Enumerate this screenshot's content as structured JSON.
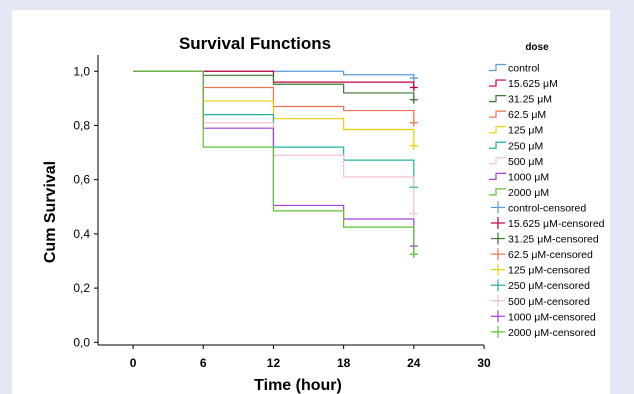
{
  "chart_data": {
    "type": "line",
    "subtype": "kaplan-meier step plot",
    "title": "Survival Functions",
    "xlabel": "Time (hour)",
    "ylabel": "Cum Survival",
    "xlim": [
      -3,
      30
    ],
    "ylim": [
      -0.01,
      1.06
    ],
    "x_ticks": [
      "0",
      "6",
      "12",
      "18",
      "24",
      "30"
    ],
    "y_ticks": [
      "0,0",
      "0,2",
      "0,4",
      "0,6",
      "0,8",
      "1,0"
    ],
    "legend_title": "dose",
    "legend_position": "right",
    "grid": false,
    "series": [
      {
        "name": "control",
        "censored_name": "control-censored",
        "color": "#5b9bd5",
        "steps": [
          [
            0,
            1.0
          ],
          [
            18,
            0.987
          ]
        ],
        "censor": [
          24,
          0.975
        ],
        "end": 24
      },
      {
        "name": "15.625 μM",
        "censored_name": "15.625 μM-censored",
        "color": "#c00040",
        "steps": [
          [
            0,
            1.0
          ],
          [
            12,
            0.96
          ]
        ],
        "censor": [
          24,
          0.94
        ],
        "end": 24
      },
      {
        "name": "31.25 μM",
        "censored_name": "31.25 μM-censored",
        "color": "#3a7a2e",
        "steps": [
          [
            0,
            1.0
          ],
          [
            6,
            0.985
          ],
          [
            12,
            0.952
          ],
          [
            18,
            0.92
          ]
        ],
        "censor": [
          24,
          0.895
        ],
        "end": 24
      },
      {
        "name": "62.5 μM",
        "censored_name": "62.5 μM-censored",
        "color": "#f07050",
        "steps": [
          [
            0,
            1.0
          ],
          [
            6,
            0.94
          ],
          [
            12,
            0.87
          ],
          [
            18,
            0.855
          ]
        ],
        "censor": [
          24,
          0.81
        ],
        "end": 24
      },
      {
        "name": "125 μM",
        "censored_name": "125 μM-censored",
        "color": "#e8d000",
        "steps": [
          [
            0,
            1.0
          ],
          [
            6,
            0.89
          ],
          [
            12,
            0.825
          ],
          [
            18,
            0.785
          ]
        ],
        "censor": [
          24,
          0.725
        ],
        "end": 24
      },
      {
        "name": "250 μM",
        "censored_name": "250 μM-censored",
        "color": "#20b0a0",
        "steps": [
          [
            0,
            1.0
          ],
          [
            6,
            0.84
          ],
          [
            12,
            0.72
          ],
          [
            18,
            0.672
          ]
        ],
        "censor": [
          24,
          0.572
        ],
        "end": 24
      },
      {
        "name": "500 μM",
        "censored_name": "500 μM-censored",
        "color": "#f4c0d8",
        "steps": [
          [
            0,
            1.0
          ],
          [
            6,
            0.81
          ],
          [
            12,
            0.69
          ],
          [
            18,
            0.61
          ]
        ],
        "censor": [
          24,
          0.475
        ],
        "end": 24
      },
      {
        "name": "1000 μM",
        "censored_name": "1000 μM-censored",
        "color": "#a040e0",
        "steps": [
          [
            0,
            1.0
          ],
          [
            6,
            0.79
          ],
          [
            12,
            0.505
          ],
          [
            18,
            0.455
          ]
        ],
        "censor": [
          24,
          0.355
        ],
        "end": 24
      },
      {
        "name": "2000 μM",
        "censored_name": "2000 μM-censored",
        "color": "#60c030",
        "steps": [
          [
            0,
            1.0
          ],
          [
            6,
            0.72
          ],
          [
            12,
            0.485
          ],
          [
            18,
            0.425
          ]
        ],
        "censor": [
          24,
          0.325
        ],
        "end": 24
      }
    ]
  }
}
